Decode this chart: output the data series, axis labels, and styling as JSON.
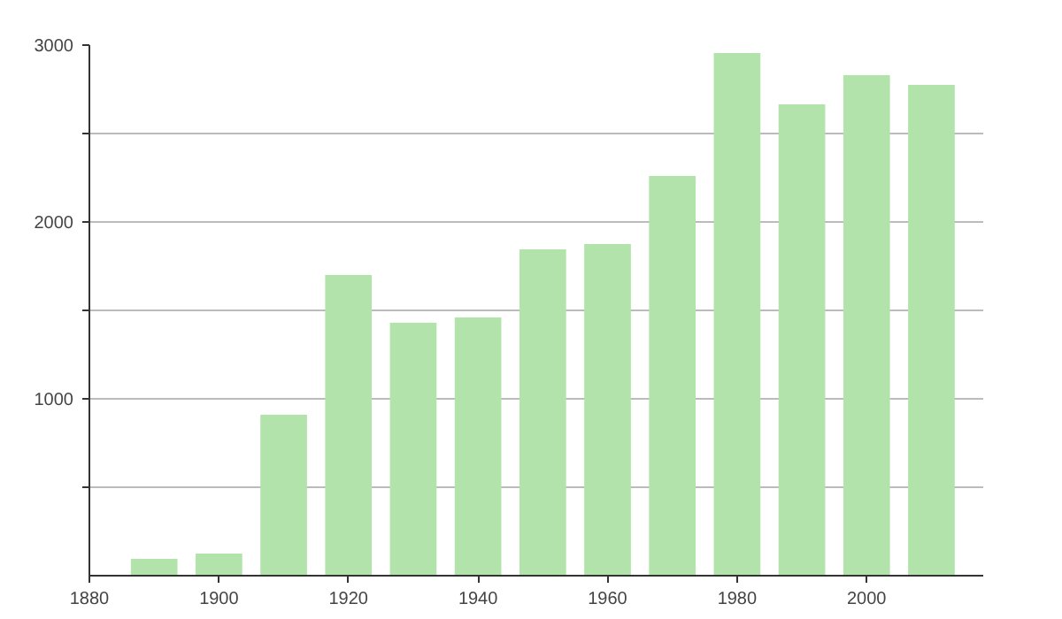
{
  "chart_data": {
    "type": "bar",
    "x": [
      1890,
      1900,
      1910,
      1920,
      1930,
      1940,
      1950,
      1960,
      1970,
      1980,
      1990,
      2000,
      2010
    ],
    "values": [
      95,
      125,
      910,
      1700,
      1430,
      1460,
      1845,
      1875,
      2260,
      2955,
      2665,
      2830,
      2775
    ],
    "color": "#b2e3ab",
    "xlim": [
      1880,
      2018
    ],
    "xticks": [
      1880,
      1900,
      1920,
      1940,
      1960,
      1980,
      2000
    ],
    "ylim": [
      0,
      3000
    ],
    "yticks": [
      {
        "value": 500,
        "label": null
      },
      1000,
      {
        "value": 1500,
        "label": null
      },
      2000,
      {
        "value": 2500,
        "label": null
      },
      3000
    ],
    "grid": "y"
  }
}
